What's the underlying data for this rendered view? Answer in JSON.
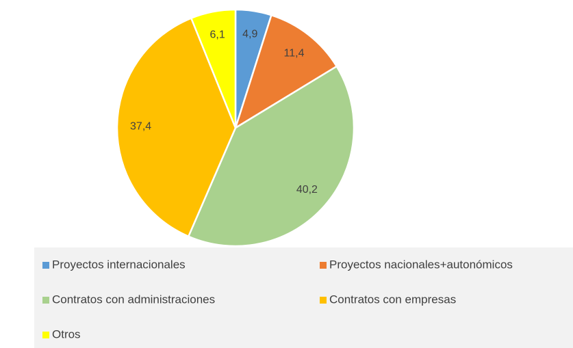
{
  "chart_data": {
    "type": "pie",
    "categories": [
      "Proyectos internacionales",
      "Proyectos nacionales+autonómicos",
      "Contratos con administraciones",
      "Contratos con empresas",
      "Otros"
    ],
    "values": [
      4.9,
      11.4,
      40.2,
      37.4,
      6.1
    ],
    "value_labels": [
      "4,9",
      "11,4",
      "40,2",
      "37,4",
      "6,1"
    ],
    "colors": [
      "#5b9bd5",
      "#ed7d31",
      "#a9d18e",
      "#ffc000",
      "#ffff00"
    ],
    "legend": "bottom"
  }
}
